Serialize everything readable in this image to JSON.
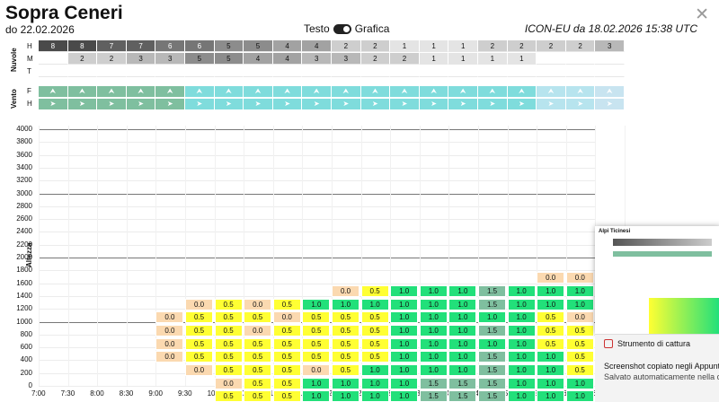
{
  "header": {
    "title": "Sopra Ceneri",
    "date": "do 22.02.2026",
    "toggle_left": "Testo",
    "toggle_right": "Grafica",
    "model": "ICON-EU da 18.02.2026 15:38 UTC",
    "close": "✕"
  },
  "clouds": {
    "section_label": "Nuvole",
    "rows": [
      "H",
      "M",
      "T"
    ],
    "H": [
      "8",
      "8",
      "7",
      "7",
      "6",
      "6",
      "5",
      "5",
      "4",
      "4",
      "2",
      "2",
      "1",
      "1",
      "1",
      "2",
      "2",
      "2",
      "2",
      "3"
    ],
    "M": [
      "",
      "2",
      "2",
      "3",
      "3",
      "5",
      "5",
      "4",
      "4",
      "3",
      "3",
      "2",
      "2",
      "1",
      "1",
      "1",
      "1",
      "",
      "",
      ""
    ],
    "T": []
  },
  "wind": {
    "section_label": "Vento",
    "rows": [
      "F",
      "H"
    ],
    "icon": "wind-arrow-icon"
  },
  "altitude": {
    "label": "Altezza",
    "ticks": [
      "4000",
      "3800",
      "3600",
      "3400",
      "3200",
      "3000",
      "2800",
      "2600",
      "2400",
      "2200",
      "2000",
      "1800",
      "1600",
      "1400",
      "1200",
      "1000",
      "800",
      "600",
      "400",
      "200",
      "0"
    ],
    "times": [
      "7:00",
      "7:30",
      "8:00",
      "8:30",
      "9:00",
      "9:30",
      "10:00",
      "10:30",
      "11:00",
      "11:30",
      "12:00",
      "12:30",
      "13:00",
      "13:30",
      "14:00",
      "14:30",
      "15:00",
      "15:30",
      "16:00",
      "16:30"
    ]
  },
  "forecast_columns": [
    {
      "col": 4,
      "values": [
        "",
        "",
        "",
        "",
        "",
        "",
        "0.0",
        "0.0",
        "0.0",
        "0.0",
        "",
        "",
        ""
      ]
    },
    {
      "col": 5,
      "values": [
        "",
        "",
        "",
        "",
        "",
        "0.0",
        "0.5",
        "0.5",
        "0.5",
        "0.5",
        "0.0",
        "",
        ""
      ]
    },
    {
      "col": 6,
      "values": [
        "",
        "",
        "",
        "",
        "",
        "0.5",
        "0.5",
        "0.5",
        "0.5",
        "0.5",
        "0.5",
        "0.0",
        "0.5"
      ]
    },
    {
      "col": 7,
      "values": [
        "",
        "",
        "",
        "",
        "",
        "0.0",
        "0.5",
        "0.0",
        "0.5",
        "0.5",
        "0.5",
        "0.5",
        "0.5"
      ]
    },
    {
      "col": 8,
      "values": [
        "",
        "",
        "",
        "",
        "",
        "0.5",
        "0.0",
        "0.5",
        "0.5",
        "0.5",
        "0.5",
        "0.5",
        "0.5"
      ]
    },
    {
      "col": 9,
      "values": [
        "",
        "",
        "",
        "",
        "",
        "1.0",
        "0.5",
        "0.5",
        "0.5",
        "0.5",
        "0.0",
        "1.0",
        "1.0"
      ]
    },
    {
      "col": 10,
      "values": [
        "",
        "",
        "",
        "",
        "0.0",
        "1.0",
        "0.5",
        "0.5",
        "0.5",
        "0.5",
        "0.5",
        "1.0",
        "1.0"
      ]
    },
    {
      "col": 11,
      "values": [
        "",
        "",
        "",
        "",
        "0.5",
        "1.0",
        "0.5",
        "0.5",
        "0.5",
        "0.5",
        "1.0",
        "1.0",
        "1.0"
      ]
    },
    {
      "col": 12,
      "values": [
        "",
        "",
        "",
        "",
        "1.0",
        "1.0",
        "1.0",
        "1.0",
        "1.0",
        "1.0",
        "1.0",
        "1.0",
        "1.0"
      ]
    },
    {
      "col": 13,
      "values": [
        "",
        "",
        "",
        "",
        "1.0",
        "1.0",
        "1.0",
        "1.0",
        "1.0",
        "1.0",
        "1.0",
        "1.5",
        "1.5"
      ]
    },
    {
      "col": 14,
      "values": [
        "",
        "",
        "",
        "",
        "1.0",
        "1.0",
        "1.0",
        "1.0",
        "1.0",
        "1.0",
        "1.0",
        "1.5",
        "1.5"
      ]
    },
    {
      "col": 15,
      "values": [
        "",
        "",
        "",
        "",
        "1.5",
        "1.5",
        "1.0",
        "1.5",
        "1.0",
        "1.5",
        "1.5",
        "1.5",
        "1.5"
      ]
    },
    {
      "col": 16,
      "values": [
        "",
        "",
        "",
        "",
        "1.0",
        "1.0",
        "1.0",
        "1.0",
        "1.0",
        "1.0",
        "1.0",
        "1.0",
        "1.0"
      ]
    },
    {
      "col": 17,
      "values": [
        "",
        "",
        "",
        "0.0",
        "1.0",
        "1.0",
        "0.5",
        "0.5",
        "0.5",
        "1.0",
        "1.0",
        "1.0",
        "1.0"
      ]
    },
    {
      "col": 18,
      "values": [
        "",
        "",
        "",
        "0.0",
        "1.0",
        "1.0",
        "0.0",
        "0.5",
        "0.5",
        "0.5",
        "0.5",
        "1.0",
        "1.0"
      ]
    },
    {
      "col": 19,
      "values": [
        "",
        "",
        "",
        "",
        "0.5",
        "0.5",
        "0.5",
        "0.5",
        "0.5",
        "0.5",
        "0.5",
        "0.5",
        "0.5"
      ]
    }
  ],
  "thumbnail": {
    "title": "Alpi Ticinesi"
  },
  "notification": {
    "app": "Strumento di cattura",
    "line1": "Screenshot copiato negli Appunti",
    "line2": "Salvato automaticamente nella c"
  },
  "colors": {
    "v00": "#fbd9b0",
    "v05": "#ffff33",
    "v10": "#22e07a",
    "v15": "#7fbf9f",
    "wind_dark": "#7fbf9f",
    "wind_light": "#7fdcdc"
  }
}
